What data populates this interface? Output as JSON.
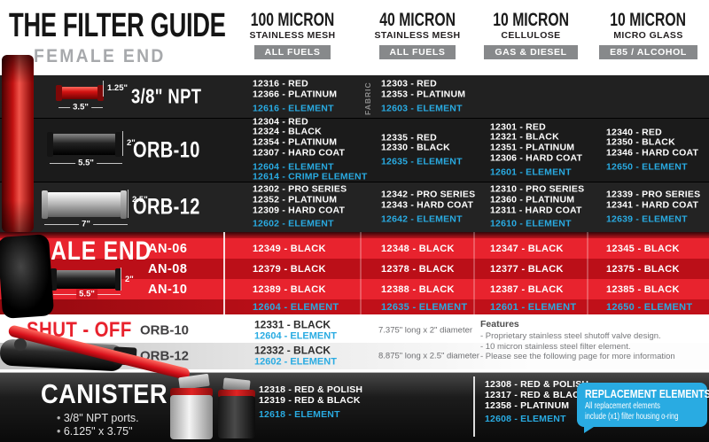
{
  "page": {
    "title": "THE FILTER GUIDE",
    "subtitle": "FEMALE END"
  },
  "columns": [
    {
      "micron": "100 MICRON",
      "media": "STAINLESS MESH",
      "badge": "ALL FUELS"
    },
    {
      "micron": "40 MICRON",
      "media": "STAINLESS MESH",
      "badge": "ALL FUELS"
    },
    {
      "micron": "10 MICRON",
      "media": "CELLULOSE",
      "badge": "GAS & DIESEL"
    },
    {
      "micron": "10 MICRON",
      "media": "MICRO GLASS",
      "badge": "E85 / ALCOHOL"
    }
  ],
  "female_rows": [
    {
      "label": "3/8\" NPT",
      "dims": {
        "height": "1.25\"",
        "length": "3.5\""
      },
      "cells": [
        {
          "parts": [
            "12316 - RED",
            "12366 - PLATINUM"
          ],
          "elements": [
            "12616 - ELEMENT"
          ]
        },
        {
          "side_note": "FABRIC",
          "parts": [
            "12303 - RED",
            "12353 - PLATINUM"
          ],
          "elements": [
            "12603 - ELEMENT"
          ]
        },
        {
          "parts": [],
          "elements": []
        },
        {
          "parts": [],
          "elements": []
        }
      ]
    },
    {
      "label": "ORB-10",
      "dims": {
        "height": "2\"",
        "length": "5.5\""
      },
      "cells": [
        {
          "parts": [
            "12304 - RED",
            "12324 - BLACK",
            "12354 - PLATINUM",
            "12307 - HARD COAT"
          ],
          "elements": [
            "12604 - ELEMENT",
            "12614 - CRIMP ELEMENT"
          ]
        },
        {
          "parts": [
            "12335 - RED",
            "12330 - BLACK"
          ],
          "elements": [
            "12635 - ELEMENT"
          ]
        },
        {
          "parts": [
            "12301 - RED",
            "12321 - BLACK",
            "12351 - PLATINUM",
            "12306 - HARD COAT"
          ],
          "elements": [
            "12601 - ELEMENT"
          ]
        },
        {
          "parts": [
            "12340 - RED",
            "12350 - BLACK",
            "12346 - HARD COAT"
          ],
          "elements": [
            "12650 - ELEMENT"
          ]
        }
      ]
    },
    {
      "label": "ORB-12",
      "dims": {
        "height": "2.5\"",
        "length": "7\""
      },
      "cells": [
        {
          "parts": [
            "12302 - PRO SERIES",
            "12352 - PLATINUM",
            "12309 - HARD COAT"
          ],
          "elements": [
            "12602 - ELEMENT"
          ]
        },
        {
          "parts": [
            "12342 - PRO SERIES",
            "12343 - HARD COAT"
          ],
          "elements": [
            "12642 - ELEMENT"
          ]
        },
        {
          "parts": [
            "12310 - PRO SERIES",
            "12360 - PLATINUM",
            "12311 - HARD COAT"
          ],
          "elements": [
            "12610 - ELEMENT"
          ]
        },
        {
          "parts": [
            "12339 - PRO SERIES",
            "12341 - HARD COAT"
          ],
          "elements": [
            "12639 - ELEMENT"
          ]
        }
      ]
    }
  ],
  "male_end": {
    "title": "MALE END",
    "dims": {
      "height": "2\"",
      "length": "5.5\""
    },
    "rows": [
      {
        "label": "AN-06",
        "cells": [
          "12349 - BLACK",
          "12348 - BLACK",
          "12347 - BLACK",
          "12345 - BLACK"
        ]
      },
      {
        "label": "AN-08",
        "cells": [
          "12379 - BLACK",
          "12378 - BLACK",
          "12377 - BLACK",
          "12375 - BLACK"
        ]
      },
      {
        "label": "AN-10",
        "cells": [
          "12389 - BLACK",
          "12388 - BLACK",
          "12387 - BLACK",
          "12385 - BLACK"
        ]
      }
    ],
    "element_row": [
      "12604 - ELEMENT",
      "12635 - ELEMENT",
      "12601 - ELEMENT",
      "12650 - ELEMENT"
    ]
  },
  "shut_off": {
    "title": "SHUT - OFF",
    "rows": [
      {
        "label": "ORB-10",
        "part": "12331 - BLACK",
        "element": "12604 - ELEMENT",
        "size": "7.375\" long x 2\" diameter"
      },
      {
        "label": "ORB-12",
        "part": "12332 - BLACK",
        "element": "12602 - ELEMENT",
        "size": "8.875\" long x 2.5\" diameter"
      }
    ],
    "features": {
      "title": "Features",
      "items": [
        "- Proprietary stainless steel shutoff valve design.",
        "- 10 micron stainless steel filter element.",
        "- Please see the following page for more information"
      ]
    }
  },
  "canister": {
    "title": "CANISTER",
    "bullets": [
      "3/8\" NPT ports.",
      "6.125\" x 3.75\""
    ],
    "mesh_cell": {
      "parts": [
        "12318 - RED & POLISH",
        "12319 - RED & BLACK"
      ],
      "elements": [
        "12618 - ELEMENT"
      ]
    },
    "cellulose_cell": {
      "parts": [
        "12308 - RED & POLISH",
        "12317 - RED & BLACK",
        "12358 - PLATINUM"
      ],
      "elements": [
        "12608 - ELEMENT"
      ]
    },
    "callout": {
      "title": "REPLACEMENT ELEMENTS",
      "line1": "All replacement elements",
      "line2": "include (x1) filter housing o-ring"
    }
  },
  "colors": {
    "accent_blue": "#29abe2",
    "accent_red": "#e8222d",
    "dark_bg": "#1d1d1d",
    "badge_gray": "#87898b"
  }
}
